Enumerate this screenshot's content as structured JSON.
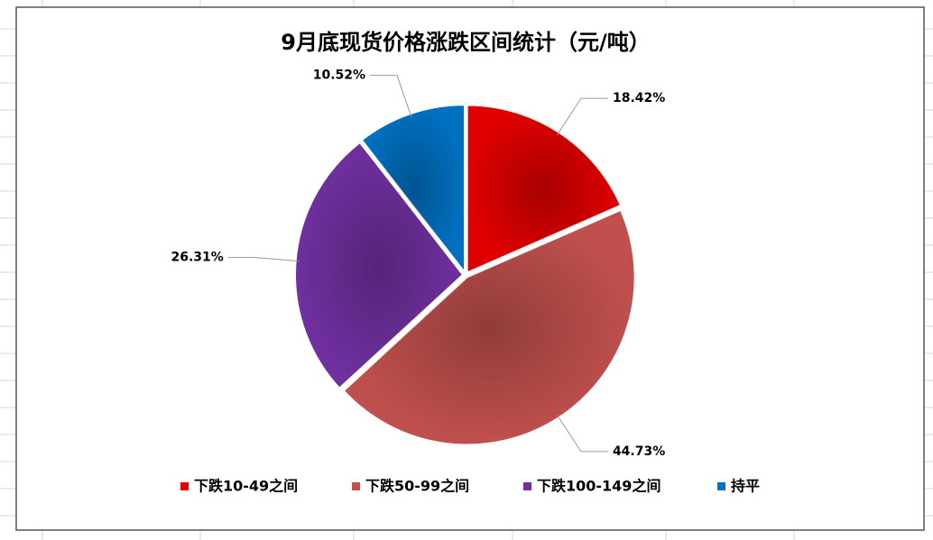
{
  "chart_data": {
    "type": "pie",
    "title": "9月底现货价格涨跌区间统计（元/吨）",
    "categories": [
      "下跌10-49之间",
      "下跌50-99之间",
      "下跌100-149之间",
      "持平"
    ],
    "values": [
      18.42,
      44.73,
      26.31,
      10.52
    ],
    "value_labels": [
      "18.42%",
      "44.73%",
      "26.31%",
      "10.52%"
    ],
    "colors": [
      "#e00000",
      "#c0504d",
      "#7030a0",
      "#0070c0"
    ],
    "legend": "bottom"
  }
}
